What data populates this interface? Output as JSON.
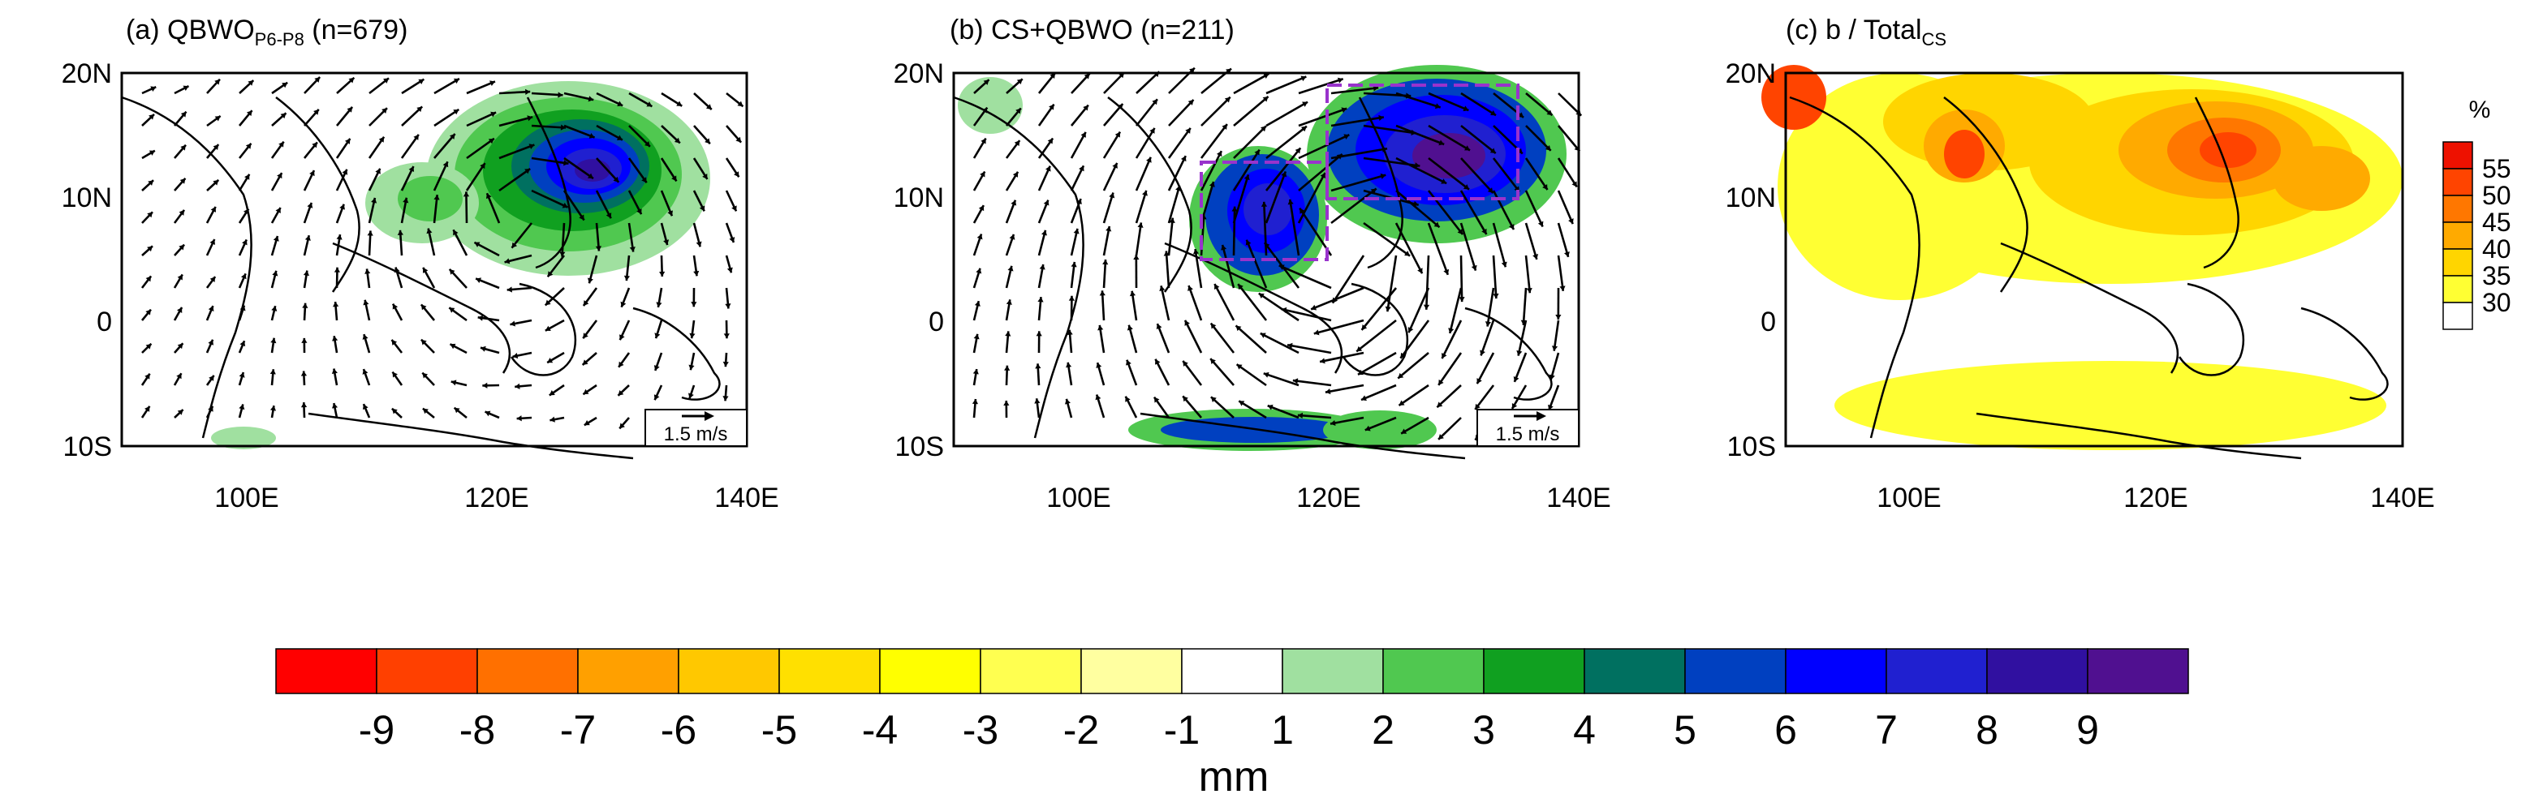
{
  "panels": [
    {
      "id": "a",
      "title_prefix": "(a) QBWO",
      "title_sub": "P6-P8",
      "title_suffix": " (n=679)",
      "scale_arrow_label": "1.5 m/s"
    },
    {
      "id": "b",
      "title_prefix": "(b) CS+QBWO (n=211)",
      "title_sub": "",
      "title_suffix": "",
      "scale_arrow_label": "1.5 m/s"
    },
    {
      "id": "c",
      "title_prefix": "(c) b / Total",
      "title_sub": "CS",
      "title_suffix": "",
      "scale_arrow_label": ""
    }
  ],
  "map_axes": {
    "lon_ticks": [
      "100E",
      "120E",
      "140E"
    ],
    "lat_ticks": [
      "20N",
      "10N",
      "0",
      "10S"
    ],
    "lon_range": [
      90,
      140
    ],
    "lat_range": [
      -10,
      20
    ]
  },
  "percent_bar": {
    "unit": "%",
    "labels": [
      "55",
      "50",
      "45",
      "40",
      "35",
      "30"
    ],
    "colors": [
      "#ee1100",
      "#ff4400",
      "#ff7700",
      "#ffaa00",
      "#ffd500",
      "#ffff33",
      "#ffffff"
    ]
  },
  "precip_bar": {
    "unit": "mm",
    "labels": [
      "-9",
      "-8",
      "-7",
      "-6",
      "-5",
      "-4",
      "-3",
      "-2",
      "-1",
      "1",
      "2",
      "3",
      "4",
      "5",
      "6",
      "7",
      "8",
      "9"
    ],
    "colors": [
      "#ff0000",
      "#ff4000",
      "#ff7000",
      "#ffa000",
      "#ffc800",
      "#ffe000",
      "#ffff00",
      "#ffff50",
      "#ffffa0",
      "#ffffff",
      "#a0e0a0",
      "#50c850",
      "#10a020",
      "#007060",
      "#0040c0",
      "#0000ff",
      "#2020d0",
      "#3010a0",
      "#501090"
    ]
  },
  "colors": {
    "frame": "#000000",
    "arrow": "#000000",
    "box": "#9933cc"
  }
}
